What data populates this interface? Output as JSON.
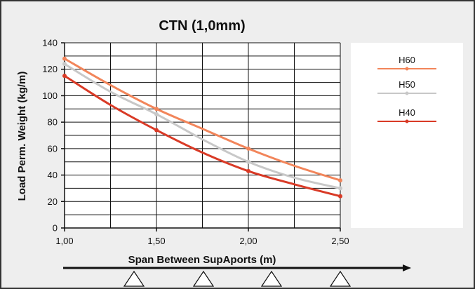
{
  "chart_data": {
    "type": "line",
    "title": "CTN (1,0mm)",
    "xlabel": "Span Between SupAports (m)",
    "ylabel": "Load Perm. Weight (kg/m)",
    "xlim": [
      1.0,
      2.5
    ],
    "ylim": [
      0,
      140
    ],
    "x_ticks": [
      "1,00",
      "1,50",
      "2,00",
      "2,50"
    ],
    "y_ticks": [
      "0",
      "20",
      "40",
      "60",
      "80",
      "100",
      "120",
      "140"
    ],
    "grid": true,
    "legend_position": "right",
    "series": [
      {
        "name": "H60",
        "color": "#f2855a",
        "x": [
          1.0,
          1.25,
          1.5,
          1.75,
          2.0,
          2.25,
          2.5
        ],
        "y": [
          128,
          108,
          90,
          75,
          60,
          47,
          36
        ],
        "markers": [
          [
            1.0,
            128
          ],
          [
            1.5,
            90
          ],
          [
            2.0,
            60
          ],
          [
            2.5,
            36
          ]
        ]
      },
      {
        "name": "H50",
        "color": "#c8c8c8",
        "x": [
          1.0,
          1.25,
          1.5,
          1.75,
          2.0,
          2.25,
          2.5
        ],
        "y": [
          124,
          103,
          86,
          67,
          50,
          38,
          30
        ],
        "markers": [
          [
            1.0,
            124
          ],
          [
            1.5,
            86
          ],
          [
            2.0,
            50
          ],
          [
            2.5,
            30
          ]
        ]
      },
      {
        "name": "H40",
        "color": "#d93a26",
        "x": [
          1.0,
          1.25,
          1.5,
          1.75,
          2.0,
          2.25,
          2.5
        ],
        "y": [
          115,
          93,
          74,
          57,
          43,
          33,
          24
        ],
        "markers": [
          [
            1.0,
            115
          ],
          [
            1.5,
            74
          ],
          [
            2.0,
            43
          ],
          [
            2.5,
            24
          ]
        ]
      }
    ]
  },
  "diagram": {
    "arrow_icon": "right-arrow",
    "support_icon": "triangle-support",
    "support_count": 4
  }
}
